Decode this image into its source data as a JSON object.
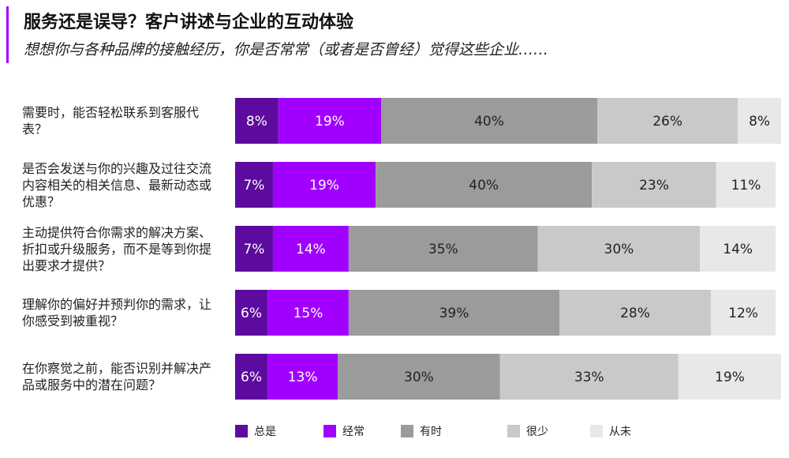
{
  "chart_data": {
    "type": "stacked-bar-horizontal",
    "title": "服务还是误导？客户讲述与企业的互动体验",
    "subtitle": "想想你与各种品牌的接触经历，你是否常常（或者是否曾经）觉得这些企业……",
    "categories": [
      "需要时，能否轻松联系到客服代表？",
      "是否会发送与你的兴趣及过往交流内容相关的相关信息、最新动态或优惠？",
      "主动提供符合你需求的解决方案、折扣或升级服务，而不是等到你提出要求才提供？",
      "理解你的偏好并预判你的需求，让你感受到被重视？",
      "在你察觉之前，能否识别并解决产品或服务中的潜在问题？"
    ],
    "series": [
      {
        "name": "总是",
        "color": "#5c0b9e",
        "values": [
          8,
          7,
          7,
          6,
          6
        ],
        "value_labels": [
          "8%",
          "7%",
          "7%",
          "6%",
          "6%"
        ]
      },
      {
        "name": "经常",
        "color": "#a100ff",
        "values": [
          19,
          19,
          14,
          15,
          13
        ],
        "value_labels": [
          "19%",
          "19%",
          "14%",
          "15%",
          "13%"
        ]
      },
      {
        "name": "有时",
        "color": "#9b9b9b",
        "values": [
          40,
          40,
          35,
          39,
          30
        ],
        "value_labels": [
          "40%",
          "40%",
          "35%",
          "39%",
          "30%"
        ]
      },
      {
        "name": "很少",
        "color": "#c9c9c9",
        "values": [
          26,
          23,
          30,
          28,
          33
        ],
        "value_labels": [
          "26%",
          "23%",
          "30%",
          "28%",
          "33%"
        ]
      },
      {
        "name": "从未",
        "color": "#e8e8e8",
        "values": [
          8,
          11,
          14,
          12,
          19
        ],
        "value_labels": [
          "8%",
          "11%",
          "14%",
          "12%",
          "19%"
        ]
      }
    ]
  }
}
